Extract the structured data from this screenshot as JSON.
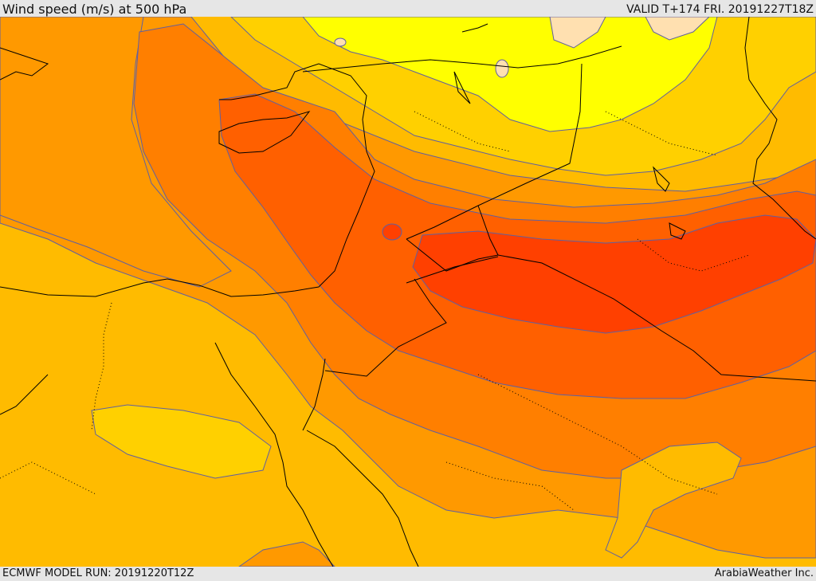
{
  "header": {
    "title": "Wind speed (m/s) at 500 hPa",
    "valid": "VALID T+174 FRI. 20191227T18Z"
  },
  "footer": {
    "model_run": "ECMWF MODEL RUN: 20191220T12Z",
    "credit": "ArabiaWeather Inc."
  },
  "colors": {
    "band_lightest": "#ffe0b0",
    "band_yellow": "#ffff00",
    "band_light_orange": "#ffd000",
    "band_amber": "#ffbb00",
    "band_orange": "#ff9900",
    "band_dark_orange": "#ff7f00",
    "band_red_orange": "#ff6000",
    "band_red": "#ff4000",
    "contour": "#6060a0",
    "coast": "#000000"
  }
}
